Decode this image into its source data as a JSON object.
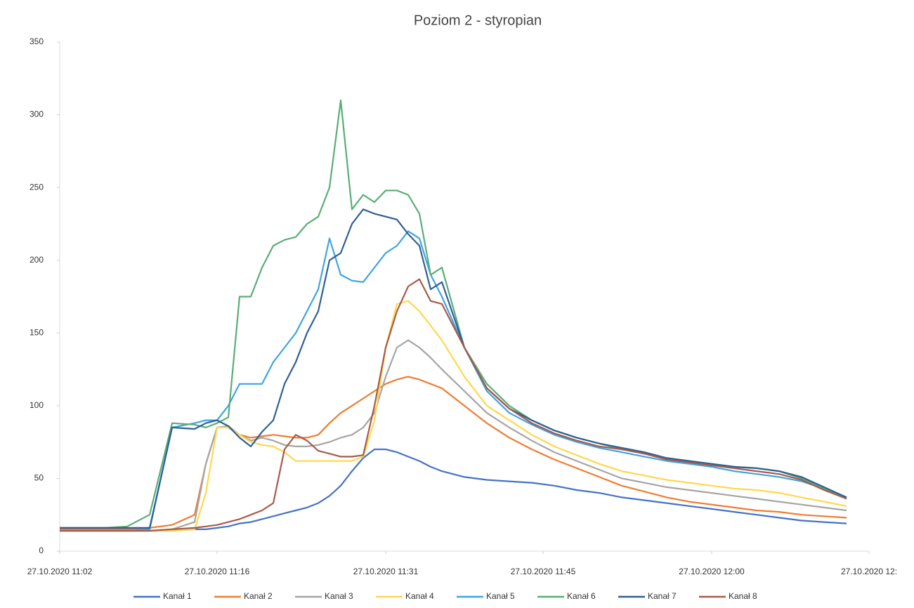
{
  "chart_data": {
    "type": "line",
    "title": "Poziom 2 - styropian",
    "x": [
      "27.10.2020 11:02",
      "27.10.2020 11:04",
      "27.10.2020 11:06",
      "27.10.2020 11:08",
      "27.10.2020 11:10",
      "27.10.2020 11:12",
      "27.10.2020 11:14",
      "27.10.2020 11:15",
      "27.10.2020 11:16",
      "27.10.2020 11:17",
      "27.10.2020 11:18",
      "27.10.2020 11:19",
      "27.10.2020 11:20",
      "27.10.2020 11:21",
      "27.10.2020 11:22",
      "27.10.2020 11:23",
      "27.10.2020 11:24",
      "27.10.2020 11:25",
      "27.10.2020 11:26",
      "27.10.2020 11:27",
      "27.10.2020 11:28",
      "27.10.2020 11:29",
      "27.10.2020 11:30",
      "27.10.2020 11:31",
      "27.10.2020 11:32",
      "27.10.2020 11:33",
      "27.10.2020 11:34",
      "27.10.2020 11:35",
      "27.10.2020 11:36",
      "27.10.2020 11:38",
      "27.10.2020 11:40",
      "27.10.2020 11:42",
      "27.10.2020 11:44",
      "27.10.2020 11:46",
      "27.10.2020 11:48",
      "27.10.2020 11:50",
      "27.10.2020 11:52",
      "27.10.2020 11:54",
      "27.10.2020 11:56",
      "27.10.2020 11:58",
      "27.10.2020 12:00",
      "27.10.2020 12:02",
      "27.10.2020 12:04",
      "27.10.2020 12:06",
      "27.10.2020 12:08",
      "27.10.2020 12:10",
      "27.10.2020 12:12"
    ],
    "series": [
      {
        "name": "Kanał 1",
        "color": "#4472c4",
        "values": [
          14,
          14,
          14,
          14,
          14,
          14,
          15,
          15,
          16,
          17,
          19,
          20,
          22,
          24,
          26,
          28,
          30,
          33,
          38,
          45,
          55,
          64,
          70,
          70,
          68,
          65,
          62,
          58,
          55,
          51,
          49,
          48,
          47,
          45,
          42,
          40,
          37,
          35,
          33,
          31,
          29,
          27,
          25,
          23,
          21,
          20,
          19
        ]
      },
      {
        "name": "Kanał 2",
        "color": "#ed7d31",
        "values": [
          15,
          15,
          15,
          15,
          16,
          18,
          25,
          60,
          85,
          85,
          80,
          78,
          79,
          80,
          79,
          78,
          78,
          80,
          88,
          95,
          100,
          105,
          110,
          115,
          118,
          120,
          118,
          115,
          112,
          100,
          88,
          78,
          70,
          63,
          57,
          51,
          45,
          41,
          37,
          34,
          32,
          30,
          28,
          27,
          25,
          24,
          23
        ]
      },
      {
        "name": "Kanał 3",
        "color": "#a5a5a5",
        "values": [
          14,
          14,
          14,
          14,
          14,
          15,
          20,
          60,
          85,
          86,
          80,
          76,
          78,
          76,
          73,
          72,
          72,
          73,
          75,
          78,
          80,
          85,
          95,
          120,
          140,
          145,
          140,
          133,
          125,
          110,
          95,
          85,
          76,
          68,
          62,
          56,
          50,
          47,
          44,
          42,
          40,
          38,
          36,
          34,
          32,
          30,
          28
        ]
      },
      {
        "name": "Kanał 4",
        "color": "#ffd84d",
        "values": [
          14,
          14,
          14,
          14,
          14,
          14,
          15,
          40,
          85,
          85,
          80,
          75,
          73,
          72,
          68,
          62,
          62,
          62,
          62,
          62,
          62,
          65,
          90,
          140,
          170,
          172,
          165,
          155,
          145,
          120,
          100,
          90,
          80,
          72,
          66,
          60,
          55,
          52,
          49,
          47,
          45,
          43,
          42,
          40,
          37,
          34,
          31
        ]
      },
      {
        "name": "Kanał 5",
        "color": "#3fa4e0",
        "values": [
          14,
          14,
          14,
          14,
          15,
          85,
          88,
          90,
          90,
          100,
          115,
          115,
          115,
          130,
          140,
          150,
          165,
          180,
          215,
          190,
          186,
          185,
          195,
          205,
          210,
          220,
          215,
          190,
          175,
          140,
          110,
          95,
          87,
          80,
          75,
          71,
          68,
          65,
          62,
          60,
          58,
          55,
          53,
          51,
          48,
          43,
          36
        ]
      },
      {
        "name": "Kanał 6",
        "color": "#5aad78",
        "values": [
          16,
          16,
          16,
          17,
          25,
          88,
          87,
          85,
          88,
          92,
          175,
          175,
          195,
          210,
          214,
          216,
          225,
          230,
          250,
          310,
          235,
          245,
          240,
          248,
          248,
          245,
          232,
          190,
          195,
          140,
          115,
          100,
          90,
          83,
          78,
          74,
          70,
          67,
          64,
          62,
          60,
          58,
          57,
          55,
          50,
          43,
          37
        ]
      },
      {
        "name": "Kanał 7",
        "color": "#2f5f95",
        "values": [
          16,
          16,
          16,
          16,
          16,
          85,
          84,
          88,
          90,
          86,
          78,
          72,
          82,
          90,
          115,
          130,
          150,
          165,
          200,
          205,
          225,
          235,
          232,
          230,
          228,
          218,
          210,
          180,
          185,
          140,
          112,
          98,
          90,
          83,
          78,
          74,
          71,
          68,
          64,
          62,
          60,
          58,
          57,
          55,
          51,
          44,
          37
        ]
      },
      {
        "name": "Kanał 8",
        "color": "#a85a4a",
        "values": [
          14,
          14,
          14,
          14,
          14,
          15,
          16,
          17,
          18,
          20,
          22,
          25,
          28,
          33,
          70,
          80,
          76,
          69,
          67,
          65,
          65,
          66,
          100,
          140,
          165,
          182,
          187,
          172,
          170,
          140,
          112,
          98,
          88,
          81,
          76,
          72,
          70,
          67,
          63,
          61,
          59,
          57,
          55,
          53,
          49,
          42,
          36
        ]
      }
    ],
    "xlim": [
      "27.10.2020 11:02",
      "27.10.2020 12:14"
    ],
    "xticks": [
      "27.10.2020 11:02",
      "27.10.2020 11:16",
      "27.10.2020 11:31",
      "27.10.2020 11:45",
      "27.10.2020 12:00",
      {
        "value": "27.10.2020 12:14",
        "label": "27.10.2020 12:"
      }
    ],
    "ylim": [
      0,
      350
    ],
    "yticks": [
      0,
      50,
      100,
      150,
      200,
      250,
      300,
      350
    ],
    "grid": false,
    "legend": "bottom"
  }
}
